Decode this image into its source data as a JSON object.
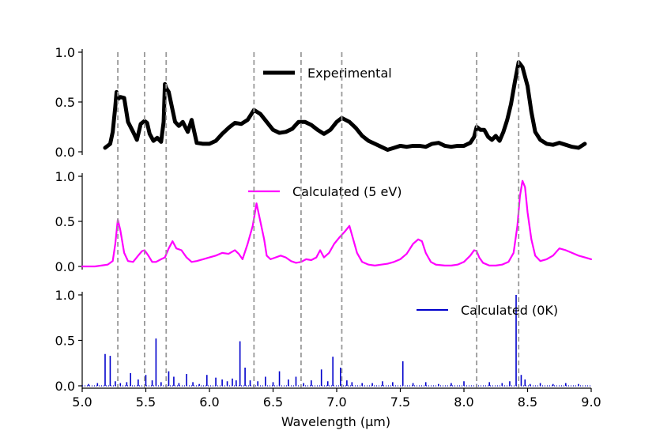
{
  "chart_data": {
    "type": "line",
    "xlabel": "Wavelength (μm)",
    "xlim": [
      5.0,
      9.0
    ],
    "xticks": [
      "5.0",
      "5.5",
      "6.0",
      "6.5",
      "7.0",
      "7.5",
      "8.0",
      "8.5",
      "9.0"
    ],
    "vlines": [
      5.28,
      5.49,
      5.66,
      6.35,
      6.72,
      7.04,
      8.1,
      8.43
    ],
    "vline_color": "#999999",
    "panels": [
      {
        "name": "experimental",
        "legend": "Experimental",
        "color": "#000000",
        "style": "line",
        "ylim": [
          0,
          1.0
        ],
        "yticks": [
          "0.0",
          "0.5",
          "1.0"
        ],
        "x": [
          5.18,
          5.22,
          5.24,
          5.26,
          5.27,
          5.28,
          5.3,
          5.33,
          5.36,
          5.4,
          5.43,
          5.46,
          5.49,
          5.51,
          5.53,
          5.56,
          5.59,
          5.62,
          5.64,
          5.65,
          5.66,
          5.68,
          5.7,
          5.73,
          5.76,
          5.79,
          5.83,
          5.86,
          5.9,
          5.95,
          6.0,
          6.05,
          6.1,
          6.15,
          6.2,
          6.25,
          6.3,
          6.35,
          6.4,
          6.45,
          6.5,
          6.55,
          6.6,
          6.65,
          6.7,
          6.75,
          6.8,
          6.85,
          6.9,
          6.95,
          7.0,
          7.04,
          7.1,
          7.15,
          7.2,
          7.25,
          7.3,
          7.35,
          7.4,
          7.45,
          7.5,
          7.55,
          7.6,
          7.65,
          7.7,
          7.75,
          7.8,
          7.85,
          7.9,
          7.95,
          8.0,
          8.05,
          8.08,
          8.1,
          8.13,
          8.16,
          8.19,
          8.22,
          8.25,
          8.28,
          8.31,
          8.34,
          8.37,
          8.4,
          8.43,
          8.46,
          8.5,
          8.53,
          8.56,
          8.6,
          8.65,
          8.7,
          8.75,
          8.8,
          8.85,
          8.9,
          8.95
        ],
        "values": [
          0.04,
          0.08,
          0.2,
          0.45,
          0.6,
          0.53,
          0.55,
          0.54,
          0.3,
          0.2,
          0.12,
          0.28,
          0.31,
          0.29,
          0.18,
          0.11,
          0.14,
          0.1,
          0.3,
          0.68,
          0.64,
          0.6,
          0.48,
          0.3,
          0.26,
          0.3,
          0.2,
          0.32,
          0.09,
          0.08,
          0.08,
          0.11,
          0.18,
          0.24,
          0.29,
          0.28,
          0.32,
          0.42,
          0.38,
          0.3,
          0.22,
          0.19,
          0.2,
          0.23,
          0.3,
          0.3,
          0.27,
          0.22,
          0.18,
          0.22,
          0.3,
          0.34,
          0.3,
          0.24,
          0.16,
          0.11,
          0.08,
          0.05,
          0.02,
          0.04,
          0.06,
          0.05,
          0.06,
          0.06,
          0.05,
          0.08,
          0.09,
          0.06,
          0.05,
          0.06,
          0.06,
          0.09,
          0.15,
          0.25,
          0.22,
          0.22,
          0.15,
          0.12,
          0.16,
          0.11,
          0.2,
          0.32,
          0.48,
          0.7,
          0.9,
          0.85,
          0.66,
          0.4,
          0.2,
          0.12,
          0.08,
          0.07,
          0.09,
          0.07,
          0.05,
          0.04,
          0.08
        ]
      },
      {
        "name": "calculated-5ev",
        "legend": "Calculated (5 eV)",
        "color": "#ff00ff",
        "style": "line",
        "ylim": [
          0,
          1.0
        ],
        "yticks": [
          "0.0",
          "0.5",
          "1.0"
        ],
        "x": [
          5.0,
          5.1,
          5.15,
          5.2,
          5.24,
          5.26,
          5.28,
          5.3,
          5.33,
          5.36,
          5.4,
          5.44,
          5.47,
          5.49,
          5.52,
          5.55,
          5.58,
          5.62,
          5.65,
          5.68,
          5.71,
          5.74,
          5.78,
          5.82,
          5.86,
          5.9,
          5.95,
          6.0,
          6.05,
          6.1,
          6.15,
          6.2,
          6.23,
          6.26,
          6.3,
          6.34,
          6.37,
          6.4,
          6.43,
          6.45,
          6.48,
          6.52,
          6.56,
          6.6,
          6.64,
          6.68,
          6.72,
          6.76,
          6.8,
          6.84,
          6.87,
          6.9,
          6.94,
          6.98,
          7.02,
          7.06,
          7.1,
          7.13,
          7.16,
          7.2,
          7.25,
          7.3,
          7.35,
          7.4,
          7.45,
          7.5,
          7.55,
          7.6,
          7.64,
          7.67,
          7.7,
          7.74,
          7.78,
          7.85,
          7.9,
          7.95,
          8.0,
          8.05,
          8.08,
          8.1,
          8.12,
          8.15,
          8.2,
          8.25,
          8.3,
          8.35,
          8.39,
          8.42,
          8.44,
          8.46,
          8.48,
          8.5,
          8.53,
          8.56,
          8.6,
          8.65,
          8.7,
          8.75,
          8.8,
          8.85,
          8.9,
          8.95,
          9.0
        ],
        "values": [
          0.0,
          0.0,
          0.01,
          0.02,
          0.06,
          0.25,
          0.52,
          0.4,
          0.15,
          0.06,
          0.05,
          0.12,
          0.17,
          0.18,
          0.12,
          0.05,
          0.05,
          0.08,
          0.1,
          0.2,
          0.28,
          0.2,
          0.18,
          0.1,
          0.05,
          0.06,
          0.08,
          0.1,
          0.12,
          0.15,
          0.14,
          0.18,
          0.14,
          0.08,
          0.25,
          0.45,
          0.7,
          0.5,
          0.3,
          0.12,
          0.08,
          0.1,
          0.12,
          0.1,
          0.06,
          0.04,
          0.05,
          0.08,
          0.07,
          0.1,
          0.18,
          0.1,
          0.15,
          0.25,
          0.32,
          0.38,
          0.45,
          0.3,
          0.15,
          0.05,
          0.02,
          0.01,
          0.02,
          0.03,
          0.05,
          0.08,
          0.14,
          0.25,
          0.3,
          0.28,
          0.15,
          0.05,
          0.02,
          0.01,
          0.01,
          0.02,
          0.05,
          0.12,
          0.18,
          0.17,
          0.1,
          0.04,
          0.01,
          0.01,
          0.02,
          0.05,
          0.15,
          0.45,
          0.78,
          0.95,
          0.88,
          0.6,
          0.3,
          0.12,
          0.06,
          0.08,
          0.12,
          0.2,
          0.18,
          0.15,
          0.12,
          0.1,
          0.08
        ]
      },
      {
        "name": "calculated-0k",
        "legend": "Calculated (0K)",
        "color": "#0000cc",
        "style": "sticks",
        "ylim": [
          0,
          1.0
        ],
        "yticks": [
          "0.0",
          "0.5",
          "1.0"
        ],
        "x": [
          5.05,
          5.12,
          5.18,
          5.22,
          5.26,
          5.3,
          5.35,
          5.38,
          5.44,
          5.5,
          5.55,
          5.58,
          5.62,
          5.68,
          5.72,
          5.76,
          5.82,
          5.87,
          5.92,
          5.98,
          6.05,
          6.1,
          6.14,
          6.18,
          6.21,
          6.24,
          6.28,
          6.32,
          6.38,
          6.44,
          6.5,
          6.55,
          6.62,
          6.68,
          6.74,
          6.8,
          6.88,
          6.93,
          6.97,
          7.03,
          7.08,
          7.12,
          7.2,
          7.28,
          7.36,
          7.44,
          7.52,
          7.6,
          7.7,
          7.8,
          7.9,
          8.0,
          8.1,
          8.2,
          8.3,
          8.36,
          8.41,
          8.45,
          8.48,
          8.52,
          8.6,
          8.7,
          8.8,
          8.9
        ],
        "values": [
          0.02,
          0.03,
          0.35,
          0.33,
          0.05,
          0.03,
          0.04,
          0.14,
          0.07,
          0.12,
          0.06,
          0.52,
          0.04,
          0.16,
          0.1,
          0.03,
          0.13,
          0.04,
          0.02,
          0.12,
          0.09,
          0.07,
          0.05,
          0.08,
          0.06,
          0.49,
          0.2,
          0.06,
          0.05,
          0.1,
          0.04,
          0.16,
          0.07,
          0.1,
          0.03,
          0.06,
          0.18,
          0.05,
          0.32,
          0.2,
          0.06,
          0.04,
          0.03,
          0.03,
          0.05,
          0.04,
          0.27,
          0.03,
          0.04,
          0.02,
          0.03,
          0.05,
          0.02,
          0.04,
          0.03,
          0.05,
          1.0,
          0.12,
          0.07,
          0.02,
          0.03,
          0.02,
          0.03,
          0.02
        ]
      }
    ]
  }
}
